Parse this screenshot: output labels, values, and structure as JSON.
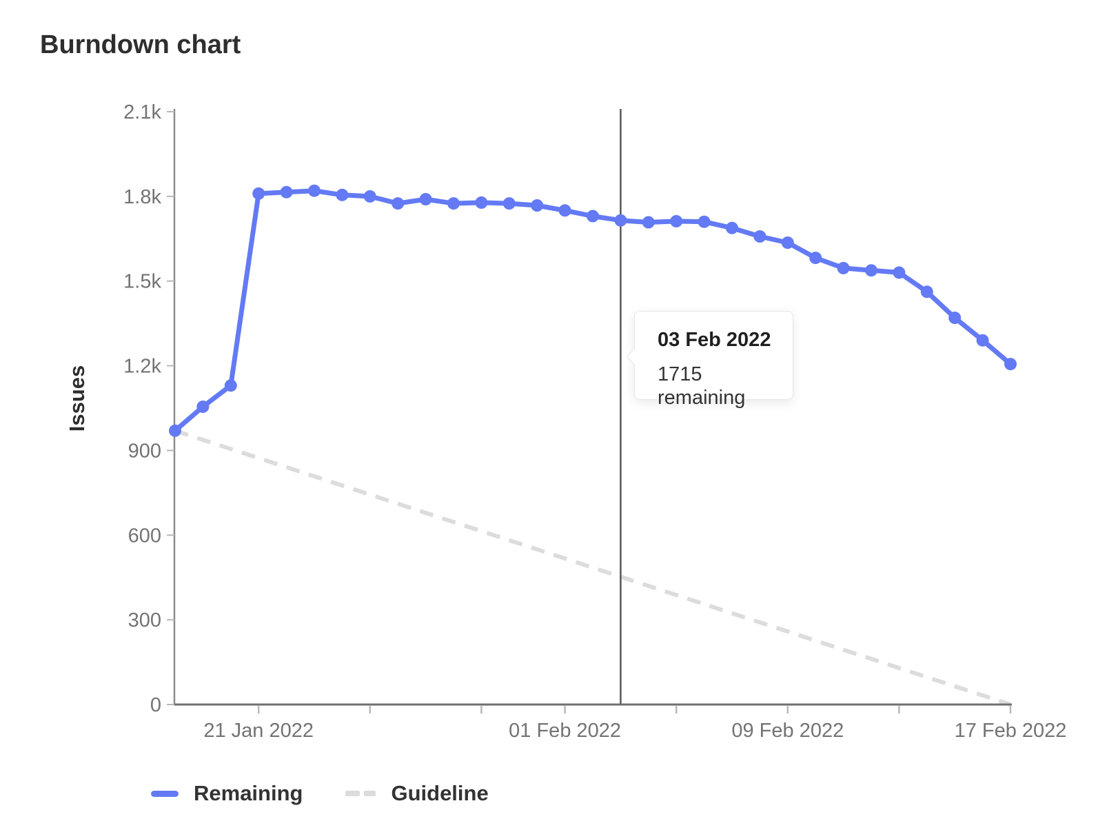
{
  "page": {
    "title": "Burndown chart"
  },
  "chart_data": {
    "type": "line",
    "title": "Burndown chart",
    "xlabel": "",
    "ylabel": "Issues",
    "ylim": [
      0,
      2100
    ],
    "grid": false,
    "legend_position": "bottom-left",
    "y_ticks": [
      {
        "value": 0,
        "label": "0"
      },
      {
        "value": 300,
        "label": "300"
      },
      {
        "value": 600,
        "label": "600"
      },
      {
        "value": 900,
        "label": "900"
      },
      {
        "value": 1200,
        "label": "1.2k"
      },
      {
        "value": 1500,
        "label": "1.5k"
      },
      {
        "value": 1800,
        "label": "1.8k"
      },
      {
        "value": 2100,
        "label": "2.1k"
      }
    ],
    "x": [
      "18 Jan 2022",
      "19 Jan 2022",
      "20 Jan 2022",
      "21 Jan 2022",
      "22 Jan 2022",
      "23 Jan 2022",
      "24 Jan 2022",
      "25 Jan 2022",
      "26 Jan 2022",
      "27 Jan 2022",
      "28 Jan 2022",
      "29 Jan 2022",
      "30 Jan 2022",
      "31 Jan 2022",
      "01 Feb 2022",
      "02 Feb 2022",
      "03 Feb 2022",
      "04 Feb 2022",
      "05 Feb 2022",
      "06 Feb 2022",
      "07 Feb 2022",
      "08 Feb 2022",
      "09 Feb 2022",
      "10 Feb 2022",
      "11 Feb 2022",
      "12 Feb 2022",
      "13 Feb 2022",
      "14 Feb 2022",
      "15 Feb 2022",
      "16 Feb 2022",
      "17 Feb 2022"
    ],
    "x_ticks": [
      {
        "i": 3,
        "label": "21 Jan 2022"
      },
      {
        "i": 7,
        "label": ""
      },
      {
        "i": 11,
        "label": ""
      },
      {
        "i": 14,
        "label": "01 Feb 2022"
      },
      {
        "i": 18,
        "label": ""
      },
      {
        "i": 22,
        "label": "09 Feb 2022"
      },
      {
        "i": 26,
        "label": ""
      },
      {
        "i": 30,
        "label": "17 Feb 2022"
      }
    ],
    "series": [
      {
        "name": "Remaining",
        "style": "solid",
        "color": "#637af4",
        "values": [
          970,
          1055,
          1130,
          1810,
          1815,
          1820,
          1805,
          1800,
          1775,
          1790,
          1775,
          1778,
          1775,
          1768,
          1750,
          1730,
          1715,
          1708,
          1712,
          1710,
          1688,
          1658,
          1636,
          1582,
          1546,
          1538,
          1530,
          1462,
          1370,
          1290,
          1206
        ]
      },
      {
        "name": "Guideline",
        "style": "dashed",
        "color": "#dcdcdc",
        "endpoints": [
          {
            "x": "18 Jan 2022",
            "value": 970
          },
          {
            "x": "17 Feb 2022",
            "value": 0
          }
        ]
      }
    ]
  },
  "tooltip": {
    "title": "03 Feb 2022",
    "body": "1715 remaining",
    "active_index": 16
  },
  "legend": {
    "items": [
      {
        "label": "Remaining",
        "color": "#637af4",
        "dashed": false
      },
      {
        "label": "Guideline",
        "color": "#dcdcdc",
        "dashed": true
      }
    ]
  },
  "colors": {
    "series_blue": "#637af4",
    "guideline_gray": "#dcdcdc",
    "pointer_line": "#555555",
    "axis_line_y": "#8c8c8c",
    "axis_line_x": "#6e6e73",
    "tick_mark": "#b8b8b8",
    "axis_label": "#737373",
    "text_dark": "#2e2e2e"
  }
}
